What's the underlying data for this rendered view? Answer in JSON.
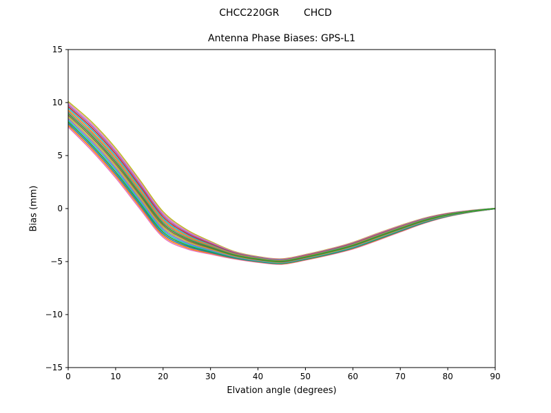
{
  "figure": {
    "kind": "matplotlib-style line plot"
  },
  "chart_data": {
    "type": "line",
    "suptitle": "CHCC220GR        CHCD",
    "title": "Antenna Phase Biases: GPS-L1",
    "xlabel": "Elvation angle (degrees)",
    "ylabel": "Bias (mm)",
    "xlim": [
      0,
      90
    ],
    "ylim": [
      -15,
      15
    ],
    "xticks": [
      0,
      10,
      20,
      30,
      40,
      50,
      60,
      70,
      80,
      90
    ],
    "xtick_labels": [
      "0",
      "10",
      "20",
      "30",
      "40",
      "50",
      "60",
      "70",
      "80",
      "90"
    ],
    "yticks": [
      -15,
      -10,
      -5,
      0,
      5,
      10,
      15
    ],
    "ytick_labels": [
      "−15",
      "−10",
      "−5",
      "0",
      "5",
      "10",
      "15"
    ],
    "grid": false,
    "legend": "none",
    "x": [
      0,
      5,
      10,
      15,
      20,
      25,
      30,
      35,
      40,
      45,
      50,
      55,
      60,
      65,
      70,
      75,
      80,
      85,
      90
    ],
    "series": [
      {
        "name": "trace-01",
        "color": "#bcbd22",
        "values": [
          10.1,
          8.15,
          5.7,
          2.75,
          -0.3,
          -2.0,
          -3.1,
          -4.05,
          -4.53,
          -4.75,
          -4.34,
          -3.82,
          -3.19,
          -2.37,
          -1.6,
          -0.91,
          -0.44,
          -0.17,
          0.02
        ]
      },
      {
        "name": "trace-02",
        "color": "#e377c2",
        "values": [
          7.7,
          5.45,
          2.9,
          0.05,
          -2.7,
          -3.8,
          -4.3,
          -4.75,
          -5.07,
          -5.25,
          -4.86,
          -4.38,
          -3.81,
          -3.03,
          -2.2,
          -1.39,
          -0.76,
          -0.33,
          -0.02
        ]
      },
      {
        "name": "trace-03",
        "color": "#e377c2",
        "values": [
          9.94,
          7.97,
          5.51,
          2.57,
          -0.46,
          -2.12,
          -3.18,
          -4.1,
          -4.57,
          -4.78,
          -4.37,
          -3.86,
          -3.23,
          -2.41,
          -1.64,
          -0.94,
          -0.46,
          -0.18,
          0.02
        ]
      },
      {
        "name": "trace-04",
        "color": "#ff7f0e",
        "values": [
          7.86,
          5.63,
          3.09,
          0.23,
          -2.54,
          -3.68,
          -4.22,
          -4.7,
          -5.03,
          -5.22,
          -4.83,
          -4.34,
          -3.77,
          -2.99,
          -2.16,
          -1.36,
          -0.74,
          -0.32,
          -0.02
        ]
      },
      {
        "name": "trace-05",
        "color": "#9467bd",
        "values": [
          9.78,
          7.79,
          5.33,
          2.39,
          -0.62,
          -2.24,
          -3.26,
          -4.14,
          -4.6,
          -4.82,
          -4.41,
          -3.89,
          -3.27,
          -2.46,
          -1.68,
          -0.97,
          -0.48,
          -0.19,
          0.02
        ]
      },
      {
        "name": "trace-06",
        "color": "#1f77b4",
        "values": [
          8.02,
          5.81,
          3.27,
          0.41,
          -2.38,
          -3.56,
          -4.14,
          -4.66,
          -5.0,
          -5.18,
          -4.79,
          -4.31,
          -3.73,
          -2.94,
          -2.12,
          -1.33,
          -0.72,
          -0.31,
          -0.02
        ]
      },
      {
        "name": "trace-07",
        "color": "#d62728",
        "values": [
          9.62,
          7.61,
          5.14,
          2.21,
          -0.78,
          -2.36,
          -3.34,
          -4.19,
          -4.64,
          -4.85,
          -4.44,
          -3.93,
          -3.31,
          -2.5,
          -1.72,
          -1.01,
          -0.5,
          -0.2,
          0.01
        ]
      },
      {
        "name": "trace-08",
        "color": "#2ca02c",
        "values": [
          8.18,
          5.99,
          3.46,
          0.59,
          -2.22,
          -3.44,
          -4.06,
          -4.61,
          -4.96,
          -5.15,
          -4.76,
          -4.27,
          -3.69,
          -2.9,
          -2.08,
          -1.29,
          -0.7,
          -0.3,
          -0.01
        ]
      },
      {
        "name": "trace-09",
        "color": "#17becf",
        "values": [
          9.46,
          7.43,
          4.95,
          2.03,
          -0.94,
          -2.48,
          -3.42,
          -4.24,
          -4.67,
          -4.88,
          -4.48,
          -3.97,
          -3.36,
          -2.55,
          -1.76,
          -1.04,
          -0.53,
          -0.21,
          0.01
        ]
      },
      {
        "name": "trace-10",
        "color": "#17becf",
        "values": [
          8.34,
          6.17,
          3.65,
          0.77,
          -2.06,
          -3.32,
          -3.98,
          -4.56,
          -4.93,
          -5.12,
          -4.72,
          -4.23,
          -3.65,
          -2.85,
          -2.04,
          -1.26,
          -0.68,
          -0.29,
          -0.01
        ]
      },
      {
        "name": "trace-11",
        "color": "#ff7f0e",
        "values": [
          9.3,
          7.25,
          4.77,
          1.85,
          -1.1,
          -2.6,
          -3.5,
          -4.28,
          -4.71,
          -4.92,
          -4.51,
          -4.01,
          -3.4,
          -2.59,
          -1.8,
          -1.07,
          -0.55,
          -0.22,
          0.01
        ]
      },
      {
        "name": "trace-12",
        "color": "#9467bd",
        "values": [
          8.5,
          6.35,
          3.83,
          0.95,
          -1.9,
          -3.2,
          -3.9,
          -4.52,
          -4.89,
          -5.08,
          -4.69,
          -4.19,
          -3.6,
          -2.81,
          -2.0,
          -1.23,
          -0.65,
          -0.28,
          -0.01
        ]
      },
      {
        "name": "trace-13",
        "color": "#7f7f7f",
        "values": [
          9.14,
          7.07,
          4.58,
          1.67,
          -1.26,
          -2.72,
          -3.58,
          -4.33,
          -4.75,
          -4.95,
          -4.55,
          -4.04,
          -3.44,
          -2.63,
          -1.84,
          -1.1,
          -0.57,
          -0.23,
          0.0
        ]
      },
      {
        "name": "trace-14",
        "color": "#bcbd22",
        "values": [
          8.66,
          6.53,
          4.02,
          1.13,
          -1.74,
          -3.08,
          -3.82,
          -4.47,
          -4.85,
          -5.05,
          -4.65,
          -4.16,
          -3.56,
          -2.77,
          -1.96,
          -1.2,
          -0.63,
          -0.27,
          0.0
        ]
      },
      {
        "name": "trace-15",
        "color": "#8c564b",
        "values": [
          8.82,
          6.71,
          4.21,
          1.31,
          -1.58,
          -2.96,
          -3.74,
          -4.42,
          -4.82,
          -5.02,
          -4.62,
          -4.12,
          -3.52,
          -2.72,
          -1.92,
          -1.17,
          -0.61,
          -0.26,
          0.0
        ]
      },
      {
        "name": "trace-16",
        "color": "#2ca02c",
        "values": [
          8.98,
          6.89,
          4.39,
          1.49,
          -1.42,
          -2.84,
          -3.66,
          -4.38,
          -4.78,
          -4.98,
          -4.58,
          -4.08,
          -3.48,
          -2.68,
          -1.88,
          -1.13,
          -0.59,
          -0.25,
          0.0
        ]
      }
    ]
  }
}
